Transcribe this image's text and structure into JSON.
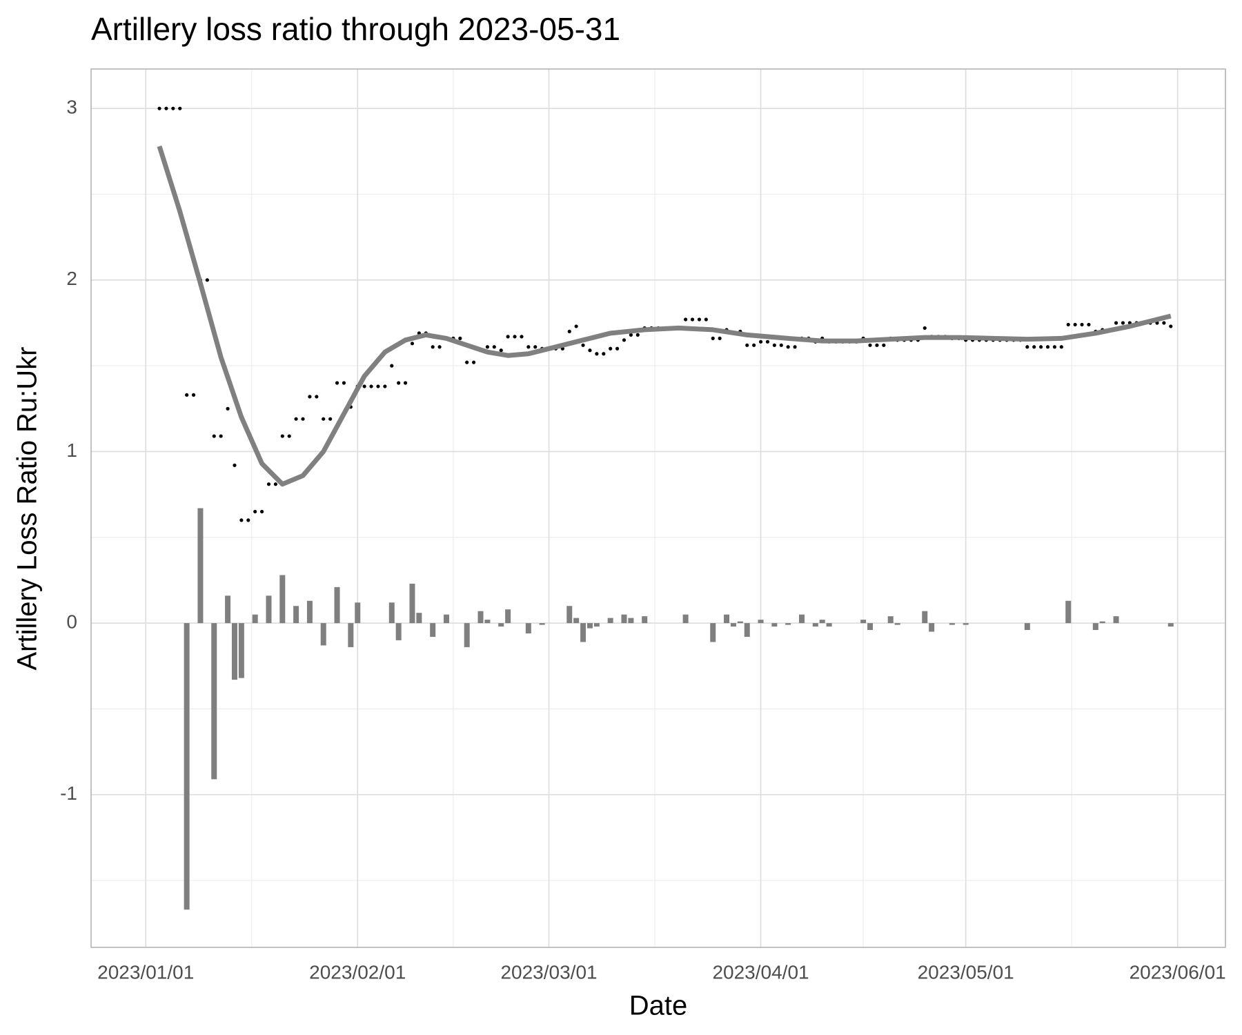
{
  "chart_data": {
    "type": "combo",
    "title": "Artillery loss ratio through 2023-05-31",
    "x_label": "Date",
    "y_label": "Artillery Loss Ratio Ru:Ukr",
    "xlim": [
      "2022-12-24",
      "2023-06-08"
    ],
    "ylim": [
      -1.89,
      3.23
    ],
    "xticks": [
      {
        "value": "2023-01-01",
        "label": "2023/01/01"
      },
      {
        "value": "2023-02-01",
        "label": "2023/02/01"
      },
      {
        "value": "2023-03-01",
        "label": "2023/03/01"
      },
      {
        "value": "2023-04-01",
        "label": "2023/04/01"
      },
      {
        "value": "2023-05-01",
        "label": "2023/05/01"
      },
      {
        "value": "2023-06-01",
        "label": "2023/06/01"
      }
    ],
    "yticks": [
      -1,
      0,
      1,
      2,
      3
    ],
    "grid": true,
    "x": [
      "2023-01-03",
      "2023-01-04",
      "2023-01-05",
      "2023-01-06",
      "2023-01-07",
      "2023-01-08",
      "2023-01-09",
      "2023-01-10",
      "2023-01-11",
      "2023-01-12",
      "2023-01-13",
      "2023-01-14",
      "2023-01-15",
      "2023-01-16",
      "2023-01-17",
      "2023-01-18",
      "2023-01-19",
      "2023-01-20",
      "2023-01-21",
      "2023-01-22",
      "2023-01-23",
      "2023-01-24",
      "2023-01-25",
      "2023-01-26",
      "2023-01-27",
      "2023-01-28",
      "2023-01-29",
      "2023-01-30",
      "2023-01-31",
      "2023-02-01",
      "2023-02-02",
      "2023-02-03",
      "2023-02-04",
      "2023-02-05",
      "2023-02-06",
      "2023-02-07",
      "2023-02-08",
      "2023-02-09",
      "2023-02-10",
      "2023-02-11",
      "2023-02-12",
      "2023-02-13",
      "2023-02-14",
      "2023-02-15",
      "2023-02-16",
      "2023-02-17",
      "2023-02-18",
      "2023-02-19",
      "2023-02-20",
      "2023-02-21",
      "2023-02-22",
      "2023-02-23",
      "2023-02-24",
      "2023-02-25",
      "2023-02-26",
      "2023-02-27",
      "2023-02-28",
      "2023-03-01",
      "2023-03-02",
      "2023-03-03",
      "2023-03-04",
      "2023-03-05",
      "2023-03-06",
      "2023-03-07",
      "2023-03-08",
      "2023-03-09",
      "2023-03-10",
      "2023-03-11",
      "2023-03-12",
      "2023-03-13",
      "2023-03-14",
      "2023-03-15",
      "2023-03-16",
      "2023-03-17",
      "2023-03-18",
      "2023-03-19",
      "2023-03-20",
      "2023-03-21",
      "2023-03-22",
      "2023-03-23",
      "2023-03-24",
      "2023-03-25",
      "2023-03-26",
      "2023-03-27",
      "2023-03-28",
      "2023-03-29",
      "2023-03-30",
      "2023-03-31",
      "2023-04-01",
      "2023-04-02",
      "2023-04-03",
      "2023-04-04",
      "2023-04-05",
      "2023-04-06",
      "2023-04-07",
      "2023-04-08",
      "2023-04-09",
      "2023-04-10",
      "2023-04-11",
      "2023-04-12",
      "2023-04-13",
      "2023-04-14",
      "2023-04-15",
      "2023-04-16",
      "2023-04-17",
      "2023-04-18",
      "2023-04-19",
      "2023-04-20",
      "2023-04-21",
      "2023-04-22",
      "2023-04-23",
      "2023-04-24",
      "2023-04-25",
      "2023-04-26",
      "2023-04-27",
      "2023-04-28",
      "2023-04-29",
      "2023-04-30",
      "2023-05-01",
      "2023-05-02",
      "2023-05-03",
      "2023-05-04",
      "2023-05-05",
      "2023-05-06",
      "2023-05-07",
      "2023-05-08",
      "2023-05-09",
      "2023-05-10",
      "2023-05-11",
      "2023-05-12",
      "2023-05-13",
      "2023-05-14",
      "2023-05-15",
      "2023-05-16",
      "2023-05-17",
      "2023-05-18",
      "2023-05-19",
      "2023-05-20",
      "2023-05-21",
      "2023-05-22",
      "2023-05-23",
      "2023-05-24",
      "2023-05-25",
      "2023-05-26",
      "2023-05-27",
      "2023-05-28",
      "2023-05-29",
      "2023-05-30",
      "2023-05-31"
    ],
    "series": [
      {
        "type": "point",
        "color": "#000000",
        "values": [
          3,
          3,
          3,
          3,
          1.33,
          1.33,
          2,
          2,
          1.09,
          1.09,
          1.25,
          0.92,
          0.6,
          0.6,
          0.65,
          0.65,
          0.81,
          0.81,
          1.09,
          1.09,
          1.19,
          1.19,
          1.32,
          1.32,
          1.19,
          1.19,
          1.4,
          1.4,
          1.26,
          1.38,
          1.38,
          1.38,
          1.38,
          1.38,
          1.5,
          1.4,
          1.4,
          1.63,
          1.69,
          1.69,
          1.61,
          1.61,
          1.66,
          1.66,
          1.66,
          1.52,
          1.52,
          1.59,
          1.61,
          1.61,
          1.59,
          1.67,
          1.67,
          1.67,
          1.61,
          1.61,
          1.6,
          1.6,
          1.6,
          1.6,
          1.7,
          1.73,
          1.62,
          1.59,
          1.57,
          1.57,
          1.6,
          1.6,
          1.65,
          1.68,
          1.68,
          1.72,
          1.72,
          1.72,
          1.72,
          1.72,
          1.72,
          1.77,
          1.77,
          1.77,
          1.77,
          1.66,
          1.66,
          1.71,
          1.69,
          1.7,
          1.62,
          1.62,
          1.64,
          1.64,
          1.62,
          1.62,
          1.61,
          1.61,
          1.66,
          1.66,
          1.64,
          1.66,
          1.64,
          1.64,
          1.64,
          1.64,
          1.64,
          1.66,
          1.62,
          1.62,
          1.62,
          1.66,
          1.65,
          1.65,
          1.65,
          1.65,
          1.72,
          1.67,
          1.67,
          1.67,
          1.66,
          1.66,
          1.65,
          1.65,
          1.65,
          1.65,
          1.65,
          1.65,
          1.65,
          1.65,
          1.65,
          1.61,
          1.61,
          1.61,
          1.61,
          1.61,
          1.61,
          1.74,
          1.74,
          1.74,
          1.74,
          1.7,
          1.71,
          1.71,
          1.75,
          1.75,
          1.75,
          1.75,
          1.75,
          1.75,
          1.75,
          1.75,
          1.73
        ]
      },
      {
        "type": "bar",
        "color": "#7f7f7f",
        "values": [
          null,
          null,
          null,
          null,
          -1.67,
          null,
          0.67,
          null,
          -0.91,
          null,
          0.16,
          -0.33,
          -0.32,
          null,
          0.05,
          null,
          0.16,
          null,
          0.28,
          null,
          0.1,
          null,
          0.13,
          null,
          -0.13,
          null,
          0.21,
          null,
          -0.14,
          0.12,
          null,
          null,
          null,
          null,
          0.12,
          -0.1,
          null,
          0.23,
          0.06,
          null,
          -0.08,
          null,
          0.05,
          null,
          null,
          -0.14,
          null,
          0.07,
          0.02,
          null,
          -0.02,
          0.08,
          null,
          null,
          -0.06,
          null,
          -0.01,
          null,
          null,
          null,
          0.1,
          0.03,
          -0.11,
          -0.03,
          -0.02,
          null,
          0.03,
          null,
          0.05,
          0.03,
          null,
          0.04,
          null,
          null,
          null,
          null,
          null,
          0.05,
          null,
          null,
          null,
          -0.11,
          null,
          0.05,
          -0.02,
          0.01,
          -0.08,
          null,
          0.02,
          null,
          -0.02,
          null,
          -0.01,
          null,
          0.05,
          null,
          -0.02,
          0.02,
          -0.02,
          null,
          null,
          null,
          null,
          0.02,
          -0.04,
          null,
          null,
          0.04,
          -0.01,
          null,
          null,
          null,
          0.07,
          -0.05,
          null,
          null,
          -0.01,
          null,
          -0.01,
          null,
          null,
          null,
          null,
          null,
          null,
          null,
          null,
          -0.04,
          null,
          null,
          null,
          null,
          null,
          0.13,
          null,
          null,
          null,
          -0.04,
          0.01,
          null,
          0.04,
          null,
          null,
          null,
          null,
          null,
          null,
          null,
          -0.02
        ]
      },
      {
        "type": "line",
        "color": "#808080",
        "x": [
          "2023-01-03",
          "2023-01-06",
          "2023-01-09",
          "2023-01-12",
          "2023-01-15",
          "2023-01-18",
          "2023-01-21",
          "2023-01-24",
          "2023-01-27",
          "2023-01-30",
          "2023-02-02",
          "2023-02-05",
          "2023-02-08",
          "2023-02-11",
          "2023-02-14",
          "2023-02-17",
          "2023-02-20",
          "2023-02-23",
          "2023-02-26",
          "2023-03-01",
          "2023-03-05",
          "2023-03-10",
          "2023-03-15",
          "2023-03-20",
          "2023-03-25",
          "2023-03-30",
          "2023-04-05",
          "2023-04-10",
          "2023-04-15",
          "2023-04-20",
          "2023-04-25",
          "2023-04-30",
          "2023-05-05",
          "2023-05-10",
          "2023-05-15",
          "2023-05-20",
          "2023-05-25",
          "2023-05-31"
        ],
        "values": [
          2.78,
          2.4,
          1.98,
          1.55,
          1.2,
          0.93,
          0.81,
          0.86,
          1.0,
          1.22,
          1.44,
          1.58,
          1.65,
          1.68,
          1.66,
          1.62,
          1.58,
          1.56,
          1.57,
          1.6,
          1.64,
          1.69,
          1.71,
          1.72,
          1.71,
          1.68,
          1.66,
          1.645,
          1.645,
          1.655,
          1.665,
          1.665,
          1.66,
          1.655,
          1.66,
          1.69,
          1.73,
          1.79
        ]
      }
    ]
  }
}
